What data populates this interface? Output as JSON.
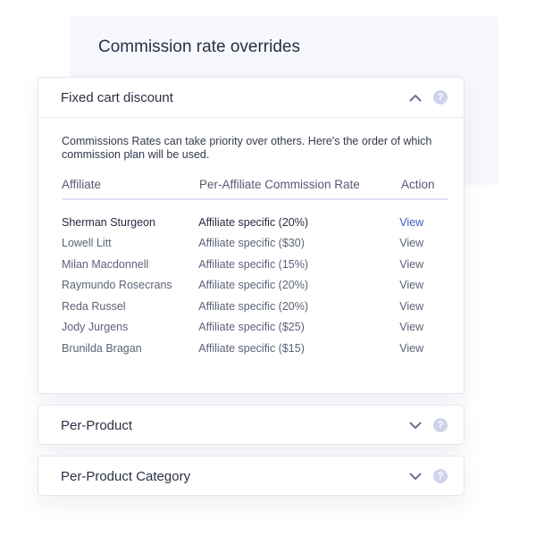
{
  "page": {
    "title": "Commission rate overrides"
  },
  "cards": [
    {
      "title": "Fixed cart discount",
      "expanded": true,
      "chevron": "chevron-up-icon",
      "help": "?",
      "description": "Commissions Rates can take priority over others. Here's the order of which commission plan will be used.",
      "table": {
        "headers": [
          "Affiliate",
          "Per-Affiliate Commission Rate",
          "Action"
        ],
        "rows": [
          {
            "affiliate": "Sherman Sturgeon",
            "rate": "Affiliate specific (20%)",
            "action": "View"
          },
          {
            "affiliate": "Lowell Litt",
            "rate": "Affiliate specific ($30)",
            "action": "View"
          },
          {
            "affiliate": "Milan Macdonnell",
            "rate": "Affiliate specific (15%)",
            "action": "View"
          },
          {
            "affiliate": "Raymundo Rosecrans",
            "rate": "Affiliate specific (20%)",
            "action": "View"
          },
          {
            "affiliate": "Reda Russel",
            "rate": "Affiliate specific (20%)",
            "action": "View"
          },
          {
            "affiliate": "Jody Jurgens",
            "rate": "Affiliate specific ($25)",
            "action": "View"
          },
          {
            "affiliate": "Brunilda Bragan",
            "rate": "Affiliate specific ($15)",
            "action": "View"
          }
        ]
      }
    },
    {
      "title": "Per-Product",
      "expanded": false,
      "chevron": "chevron-down-icon",
      "help": "?"
    },
    {
      "title": "Per-Product Category",
      "expanded": false,
      "chevron": "chevron-down-icon",
      "help": "?"
    }
  ],
  "colors": {
    "accent": "#3a5bc7",
    "panel_bg": "#f7f8fd",
    "icon": "#cfd4ec",
    "chevron": "#6b7292"
  }
}
